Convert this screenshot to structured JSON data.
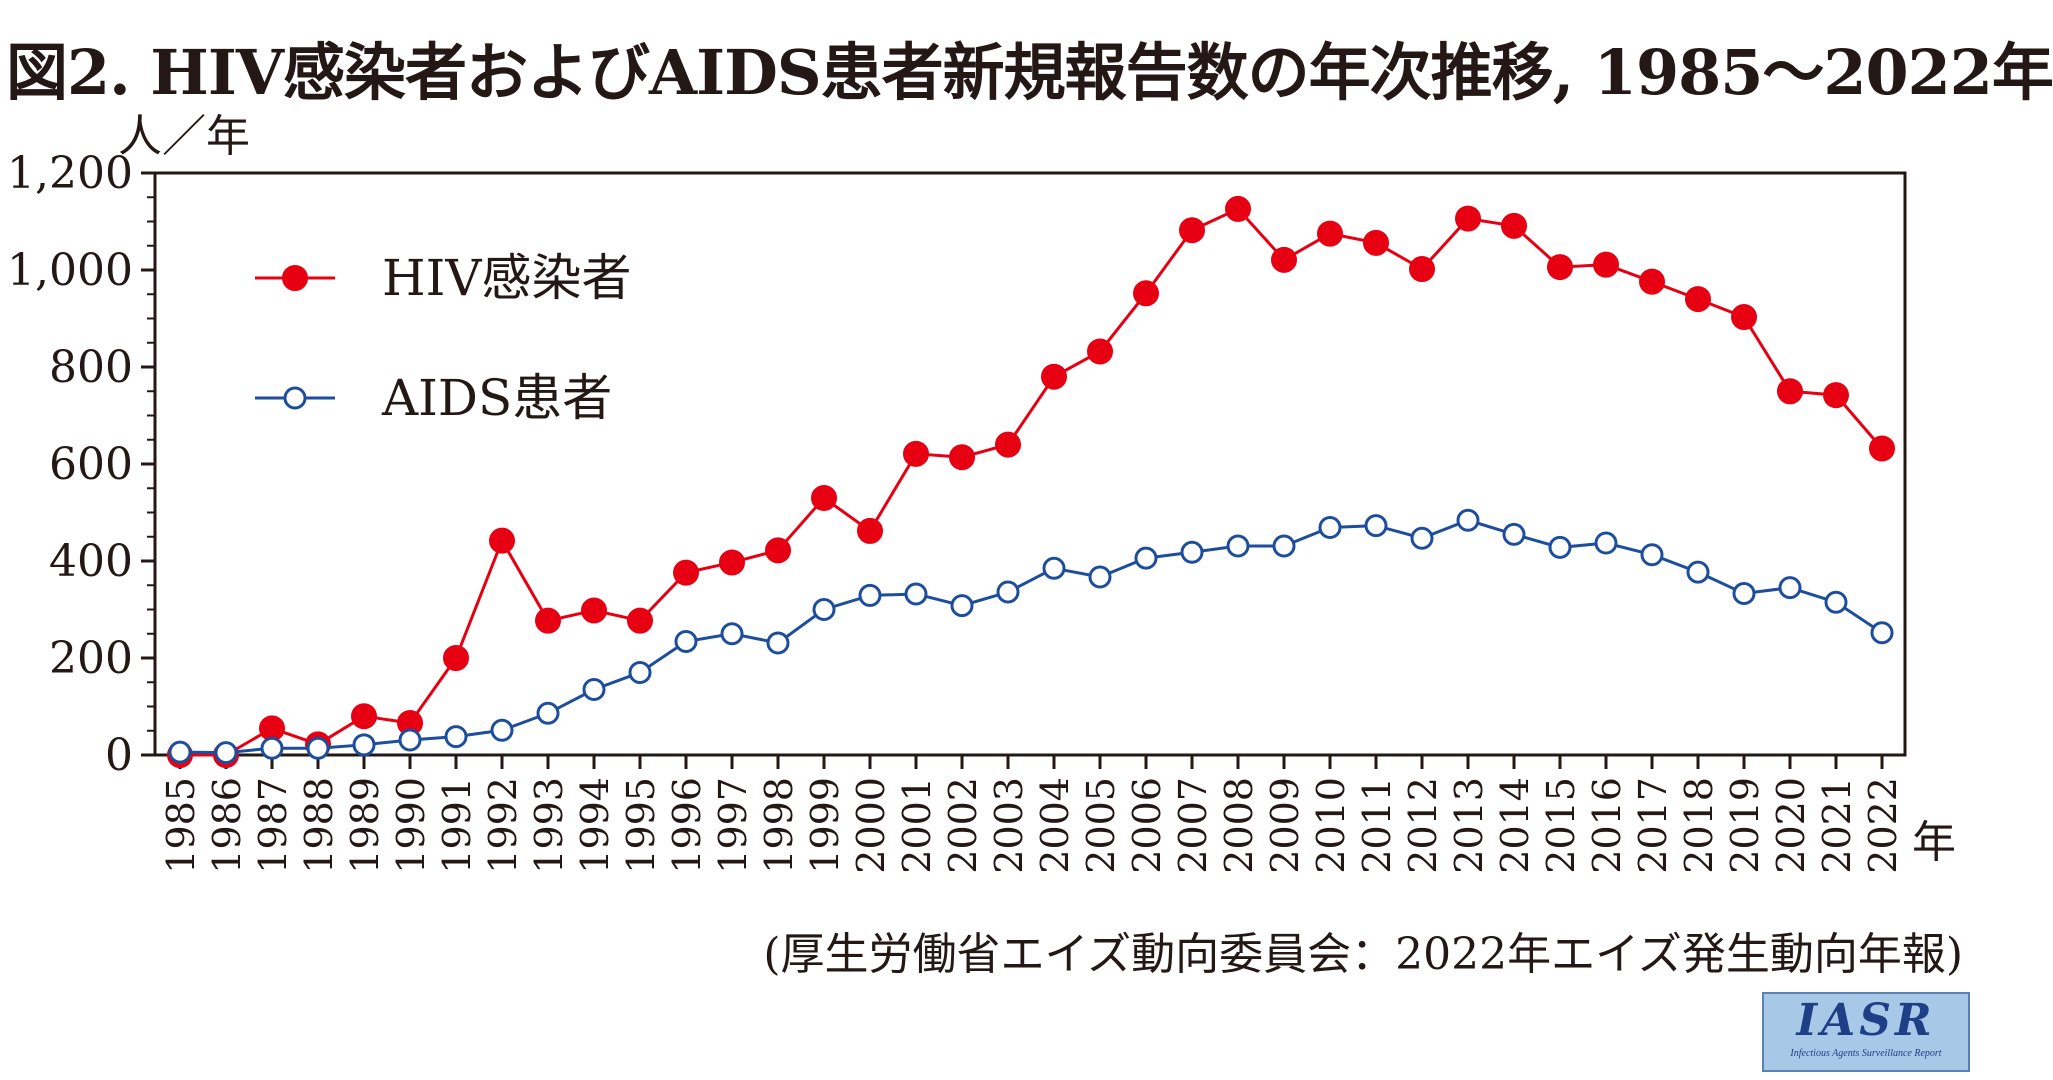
{
  "title": "図2. HIV感染者およびAIDS患者新規報告数の年次推移, 1985〜2022年",
  "source": "(厚生労働省エイズ動向委員会：2022年エイズ発生動向年報)",
  "logo": {
    "text": "IASR",
    "subtitle": "Infectious Agents Surveillance Report"
  },
  "colors": {
    "hiv": "#e60012",
    "aids": "#1d4e9e",
    "axis": "#231815"
  },
  "chart_data": {
    "type": "line",
    "title": "図2. HIV感染者およびAIDS患者新規報告数の年次推移, 1985〜2022年",
    "ylabel": "人／年",
    "xlabel": "年",
    "ylim": [
      0,
      1200
    ],
    "yticks": [
      0,
      200,
      400,
      600,
      800,
      1000,
      1200
    ],
    "ytick_labels": [
      "0",
      "200",
      "400",
      "600",
      "800",
      "1,000",
      "1,200"
    ],
    "grid": false,
    "legend_position": "top-left",
    "x": [
      "1985",
      "1986",
      "1987",
      "1988",
      "1989",
      "1990",
      "1991",
      "1992",
      "1993",
      "1994",
      "1995",
      "1996",
      "1997",
      "1998",
      "1999",
      "2000",
      "2001",
      "2002",
      "2003",
      "2004",
      "2005",
      "2006",
      "2007",
      "2008",
      "2009",
      "2010",
      "2011",
      "2012",
      "2013",
      "2014",
      "2015",
      "2016",
      "2017",
      "2018",
      "2019",
      "2020",
      "2021",
      "2022"
    ],
    "series": [
      {
        "name": "HIV感染者",
        "marker": "filled-circle",
        "color": "#e60012",
        "values": [
          0,
          0,
          55,
          22,
          80,
          66,
          200,
          442,
          277,
          298,
          277,
          376,
          397,
          422,
          530,
          462,
          621,
          614,
          640,
          780,
          832,
          952,
          1082,
          1126,
          1021,
          1075,
          1056,
          1002,
          1106,
          1091,
          1006,
          1011,
          976,
          940,
          903,
          750,
          742,
          632
        ]
      },
      {
        "name": "AIDS患者",
        "marker": "open-circle",
        "color": "#1d4e9e",
        "values": [
          6,
          5,
          14,
          14,
          21,
          31,
          38,
          51,
          86,
          135,
          170,
          234,
          250,
          231,
          300,
          329,
          332,
          308,
          336,
          385,
          367,
          406,
          418,
          431,
          431,
          469,
          473,
          447,
          484,
          455,
          428,
          437,
          413,
          377,
          333,
          345,
          315,
          252
        ]
      }
    ]
  }
}
